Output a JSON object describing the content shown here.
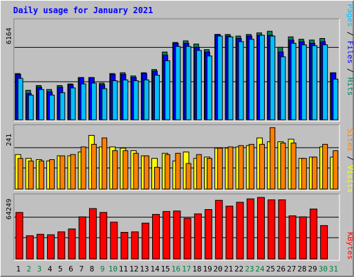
{
  "chart_data": [
    {
      "type": "bar",
      "title": "Daily usage for January 2021",
      "panel": "hits-files-pages",
      "ytick_label": "6164",
      "ylim": [
        0,
        6164
      ],
      "categories": [
        "1",
        "2",
        "3",
        "4",
        "5",
        "6",
        "7",
        "8",
        "9",
        "10",
        "11",
        "12",
        "13",
        "14",
        "15",
        "16",
        "17",
        "18",
        "19",
        "20",
        "21",
        "22",
        "23",
        "24",
        "25",
        "26",
        "27",
        "28",
        "29",
        "30",
        "31"
      ],
      "series": [
        {
          "name": "Hits",
          "values": [
            2900,
            1850,
            2150,
            1900,
            2150,
            2250,
            2650,
            2650,
            2300,
            2900,
            2950,
            2750,
            2950,
            3150,
            4250,
            4850,
            4950,
            4750,
            4400,
            5350,
            5350,
            5250,
            5350,
            5450,
            5550,
            4550,
            5200,
            5050,
            5000,
            5100,
            2950
          ]
        },
        {
          "name": "Files",
          "values": [
            2850,
            1650,
            2050,
            1750,
            2050,
            2200,
            2650,
            2650,
            2200,
            2850,
            2850,
            2650,
            2900,
            3050,
            4050,
            4800,
            4800,
            4550,
            4250,
            5350,
            5250,
            5100,
            5250,
            5300,
            5300,
            4250,
            5000,
            4900,
            4800,
            4900,
            2950
          ]
        },
        {
          "name": "Pages",
          "values": [
            2600,
            1550,
            1900,
            1550,
            1700,
            2000,
            2250,
            2300,
            1950,
            2450,
            2500,
            2450,
            2500,
            2800,
            3700,
            4600,
            4600,
            4350,
            4000,
            5250,
            5200,
            4900,
            5050,
            5300,
            5250,
            3950,
            4800,
            4700,
            4650,
            4700,
            2550
          ]
        }
      ],
      "colors": {
        "Hits": "#00805c",
        "Files": "#0000ff",
        "Pages": "#00c0ff"
      },
      "legend": [
        "Pages",
        "Files",
        "Hits"
      ],
      "legend_separator": " / "
    },
    {
      "type": "bar",
      "panel": "visits-sites",
      "ytick_label": "241",
      "ylim": [
        0,
        241
      ],
      "categories": [
        "1",
        "2",
        "3",
        "4",
        "5",
        "6",
        "7",
        "8",
        "9",
        "10",
        "11",
        "12",
        "13",
        "14",
        "15",
        "16",
        "17",
        "18",
        "19",
        "20",
        "21",
        "22",
        "23",
        "24",
        "25",
        "26",
        "27",
        "28",
        "29",
        "30",
        "31"
      ],
      "series": [
        {
          "name": "Visits",
          "values": [
            135,
            120,
            115,
            110,
            130,
            130,
            145,
            210,
            165,
            165,
            160,
            150,
            130,
            120,
            140,
            110,
            145,
            120,
            125,
            160,
            160,
            165,
            170,
            200,
            185,
            185,
            195,
            120,
            125,
            165,
            125
          ]
        },
        {
          "name": "Sites",
          "values": [
            120,
            110,
            110,
            115,
            130,
            135,
            165,
            175,
            200,
            150,
            150,
            140,
            130,
            85,
            135,
            140,
            100,
            135,
            120,
            160,
            165,
            170,
            175,
            175,
            240,
            180,
            180,
            120,
            125,
            175,
            150
          ]
        }
      ],
      "colors": {
        "Visits": "#ffff00",
        "Sites": "#ff8000"
      },
      "legend": [
        "Sites",
        "Visits"
      ],
      "legend_separator": " / "
    },
    {
      "type": "bar",
      "panel": "kbytes",
      "ytick_label": "64249",
      "ylim": [
        0,
        64249
      ],
      "categories": [
        "1",
        "2",
        "3",
        "4",
        "5",
        "6",
        "7",
        "8",
        "9",
        "10",
        "11",
        "12",
        "13",
        "14",
        "15",
        "16",
        "17",
        "18",
        "19",
        "20",
        "21",
        "22",
        "23",
        "24",
        "25",
        "26",
        "27",
        "28",
        "29",
        "30",
        "31"
      ],
      "series": [
        {
          "name": "KBytes",
          "values": [
            48000,
            24000,
            25500,
            25000,
            28000,
            31000,
            43500,
            52000,
            48000,
            38000,
            27500,
            28000,
            37000,
            46000,
            49000,
            49500,
            42000,
            46500,
            51000,
            60500,
            54500,
            58500,
            62000,
            63500,
            61000,
            61000,
            44500,
            43500,
            51500,
            34500,
            0
          ]
        }
      ],
      "colors": {
        "KBytes": "#ff0000"
      },
      "legend": [
        "KBytes"
      ]
    }
  ],
  "weekend_days": [
    "2",
    "3",
    "9",
    "10",
    "16",
    "17",
    "23",
    "24",
    "30",
    "31"
  ],
  "colors": {
    "background": "#c0c0c0",
    "title": "#0000ff",
    "day_label": "#000000",
    "weekend_label": "#008040",
    "gridline": "#000000"
  }
}
